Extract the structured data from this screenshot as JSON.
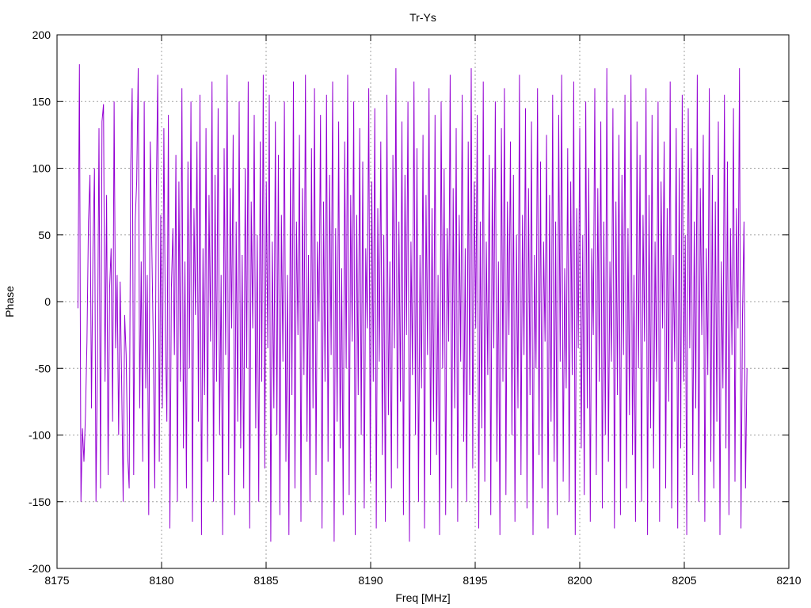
{
  "chart_data": {
    "type": "line",
    "title": "Tr-Ys",
    "xlabel": "Freq [MHz]",
    "ylabel": "Phase",
    "xlim": [
      8175,
      8210
    ],
    "ylim": [
      -200,
      200
    ],
    "x_ticks": [
      8175,
      8180,
      8185,
      8190,
      8195,
      8200,
      8205,
      8210
    ],
    "y_ticks": [
      -200,
      -150,
      -100,
      -50,
      0,
      50,
      100,
      150,
      200
    ],
    "grid": true,
    "color": "#9400d3",
    "series": [
      {
        "x_start": 8176,
        "x_end": 8208,
        "y": [
          -5,
          178,
          -150,
          -95,
          -120,
          -85,
          -30,
          60,
          95,
          -80,
          40,
          100,
          -150,
          -40,
          130,
          -140,
          135,
          148,
          -60,
          80,
          -130,
          10,
          40,
          -90,
          150,
          -35,
          20,
          -100,
          15,
          -60,
          -150,
          -10,
          -40,
          -115,
          -140,
          100,
          160,
          -130,
          60,
          90,
          175,
          -80,
          30,
          -120,
          150,
          -65,
          20,
          -160,
          120,
          45,
          -30,
          -140,
          80,
          170,
          -120,
          65,
          -80,
          130,
          -20,
          -90,
          140,
          -170,
          10,
          55,
          -40,
          110,
          -150,
          90,
          -60,
          160,
          -110,
          30,
          -140,
          105,
          -50,
          150,
          -165,
          70,
          -10,
          120,
          -90,
          155,
          -175,
          40,
          -70,
          130,
          -120,
          80,
          -30,
          165,
          -150,
          95,
          -60,
          145,
          -100,
          20,
          -175,
          115,
          -40,
          170,
          -130,
          85,
          -20,
          125,
          -160,
          60,
          -90,
          150,
          -110,
          35,
          -140,
          100,
          -50,
          165,
          -170,
          75,
          -20,
          140,
          -95,
          50,
          -150,
          120,
          -60,
          170,
          -125,
          90,
          -35,
          155,
          -180,
          45,
          -80,
          135,
          -100,
          110,
          -160,
          65,
          -45,
          150,
          -120,
          20,
          -175,
          100,
          -70,
          165,
          -140,
          60,
          -25,
          125,
          -165,
          85,
          -55,
          170,
          -105,
          35,
          -150,
          115,
          -80,
          160,
          -130,
          45,
          -15,
          140,
          -170,
          75,
          -60,
          155,
          -120,
          95,
          -40,
          165,
          -180,
          55,
          -90,
          135,
          -110,
          25,
          -160,
          120,
          -50,
          170,
          -145,
          80,
          -30,
          150,
          -175,
          65,
          -70,
          130,
          -100,
          105,
          -155,
          40,
          -20,
          160,
          -135,
          90,
          -60,
          145,
          -170,
          70,
          -45,
          120,
          -115,
          50,
          -165,
          155,
          -85,
          30,
          -140,
          110,
          -35,
          175,
          -125,
          60,
          -75,
          135,
          -160,
          95,
          -25,
          150,
          -180,
          45,
          -55,
          165,
          -100,
          115,
          -150,
          35,
          -65,
          125,
          -170,
          80,
          -40,
          160,
          -130,
          70,
          -90,
          140,
          -115,
          20,
          -175,
          150,
          -50,
          100,
          -160,
          55,
          -30,
          170,
          -140,
          85,
          -80,
          130,
          -165,
          65,
          -45,
          155,
          -105,
          40,
          -150,
          120,
          -70,
          175,
          -125,
          90,
          -20,
          140,
          -170,
          60,
          -95,
          165,
          -135,
          45,
          -55,
          110,
          -160,
          100,
          -35,
          150,
          -120,
          30,
          -175,
          130,
          -60,
          160,
          -145,
          75,
          -25,
          120,
          -100,
          95,
          -165,
          50,
          -80,
          170,
          -130,
          65,
          -40,
          145,
          -155,
          85,
          -70,
          135,
          -175,
          35,
          -50,
          160,
          -115,
          105,
          -140,
          45,
          -30,
          125,
          -170,
          80,
          -90,
          155,
          -120,
          60,
          -160,
          140,
          -45,
          170,
          -135,
          25,
          -65,
          115,
          -150,
          90,
          -55,
          165,
          -175,
          70,
          -35,
          130,
          -110,
          50,
          -145,
          150,
          -80,
          100,
          -165,
          40,
          -25,
          160,
          -130,
          85,
          -60,
          135,
          -155,
          60,
          -100,
          175,
          -120,
          30,
          -45,
          145,
          -170,
          75,
          -70,
          125,
          -160,
          95,
          -40,
          155,
          -140,
          55,
          -85,
          170,
          -115,
          20,
          -165,
          135,
          -50,
          110,
          -150,
          65,
          -30,
          160,
          -175,
          80,
          -95,
          140,
          -125,
          45,
          -60,
          150,
          -165,
          90,
          -20,
          120,
          -140,
          70,
          -75,
          165,
          -155,
          35,
          -45,
          130,
          -170,
          100,
          -110,
          155,
          -60,
          50,
          -175,
          145,
          -35,
          115,
          -130,
          60,
          -80,
          170,
          -150,
          85,
          -25,
          125,
          -165,
          40,
          -55,
          160,
          -120,
          95,
          -140,
          75,
          -90,
          135,
          -175,
          30,
          -65,
          155,
          -110,
          105,
          -160,
          55,
          -40,
          145,
          -135,
          70,
          -20,
          175,
          -170,
          -10,
          60,
          -140,
          -50
        ]
      }
    ]
  }
}
